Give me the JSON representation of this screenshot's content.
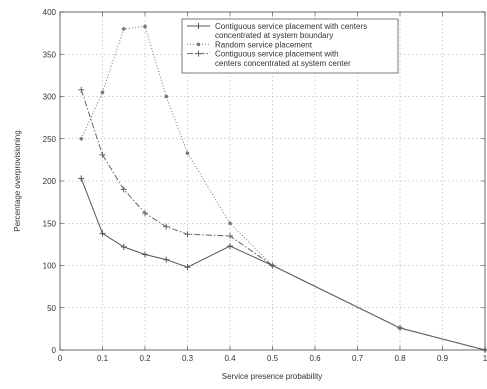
{
  "chart_data": {
    "type": "line",
    "title": "",
    "xlabel": "Service presence probability",
    "ylabel": "Percentage overprovisioning",
    "xlim": [
      0,
      1
    ],
    "ylim": [
      0,
      400
    ],
    "xticks": [
      "0",
      "0.1",
      "0.2",
      "0.3",
      "0.4",
      "0.5",
      "0.6",
      "0.7",
      "0.8",
      "0.9",
      "1"
    ],
    "yticks": [
      "0",
      "50",
      "100",
      "150",
      "200",
      "250",
      "300",
      "350",
      "400"
    ],
    "grid": true,
    "legend_position": "top-right",
    "series": [
      {
        "name": "Contiguous service placement with  centers concentrated at system boundary",
        "legend_lines": [
          "Contiguous service placement with  centers",
          "concentrated at system boundary"
        ],
        "color": "#555555",
        "line_style": "solid",
        "marker": "plus",
        "x": [
          0.05,
          0.1,
          0.15,
          0.2,
          0.25,
          0.3,
          0.4,
          0.5,
          0.8,
          1.0
        ],
        "y": [
          203,
          138,
          122,
          113,
          107,
          98,
          123,
          100,
          26,
          0
        ]
      },
      {
        "name": "Random service placement",
        "legend_lines": [
          "Random service placement"
        ],
        "color": "#777777",
        "line_style": "dotted",
        "marker": "dot",
        "x": [
          0.05,
          0.1,
          0.15,
          0.2,
          0.25,
          0.3,
          0.4,
          0.5,
          0.8,
          1.0
        ],
        "y": [
          250,
          305,
          380,
          383,
          300,
          233,
          150,
          100,
          26,
          0
        ]
      },
      {
        "name": "Contiguous service placement with centers concentrated at system center",
        "legend_lines": [
          "Contiguous service placement with",
          "centers concentrated at system center"
        ],
        "color": "#666666",
        "line_style": "dashdot",
        "marker": "plus",
        "x": [
          0.05,
          0.1,
          0.15,
          0.2,
          0.25,
          0.3,
          0.4,
          0.5,
          0.8,
          1.0
        ],
        "y": [
          308,
          231,
          190,
          162,
          146,
          137,
          135,
          100,
          26,
          0
        ]
      }
    ]
  }
}
